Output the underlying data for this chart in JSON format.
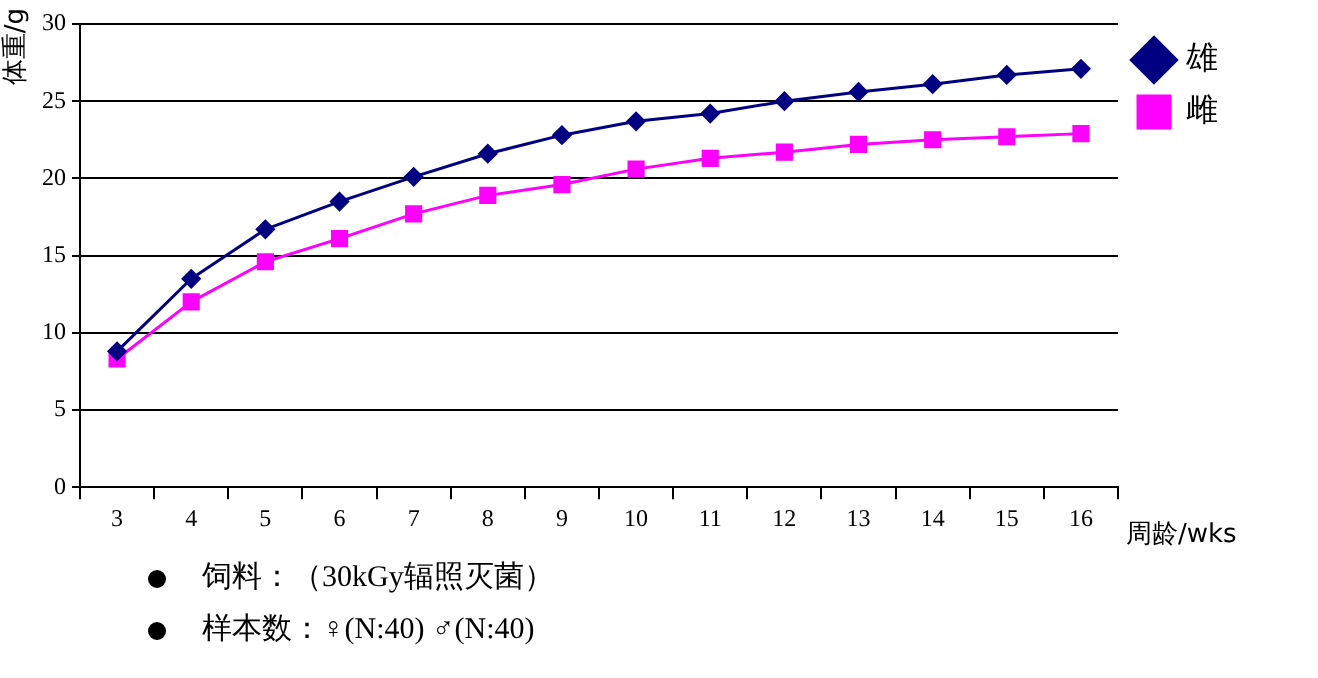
{
  "chart_data": {
    "type": "line",
    "ylabel": "体重/g",
    "xlabel": "周龄/wks",
    "categories": [
      "3",
      "4",
      "5",
      "6",
      "7",
      "8",
      "9",
      "10",
      "11",
      "12",
      "13",
      "14",
      "15",
      "16"
    ],
    "series": [
      {
        "name": "雄",
        "color": "#000080",
        "marker": "diamond",
        "values": [
          8.8,
          13.5,
          16.7,
          18.5,
          20.1,
          21.6,
          22.8,
          23.7,
          24.2,
          25.0,
          25.6,
          26.1,
          26.7,
          27.1
        ]
      },
      {
        "name": "雌",
        "color": "#ff00ff",
        "marker": "square",
        "values": [
          8.3,
          12.0,
          14.6,
          16.1,
          17.7,
          18.9,
          19.6,
          20.6,
          21.3,
          21.7,
          22.2,
          22.5,
          22.7,
          22.9
        ]
      }
    ],
    "ylim": [
      0,
      30
    ],
    "yticks": [
      0,
      5,
      10,
      15,
      20,
      25,
      30
    ],
    "grid": "y",
    "legend": "right",
    "line_style": "solid",
    "annotations": [
      "饲料：（30kGy辐照灭菌）",
      "样本数：♀(N:40) ♂(N:40)"
    ]
  }
}
